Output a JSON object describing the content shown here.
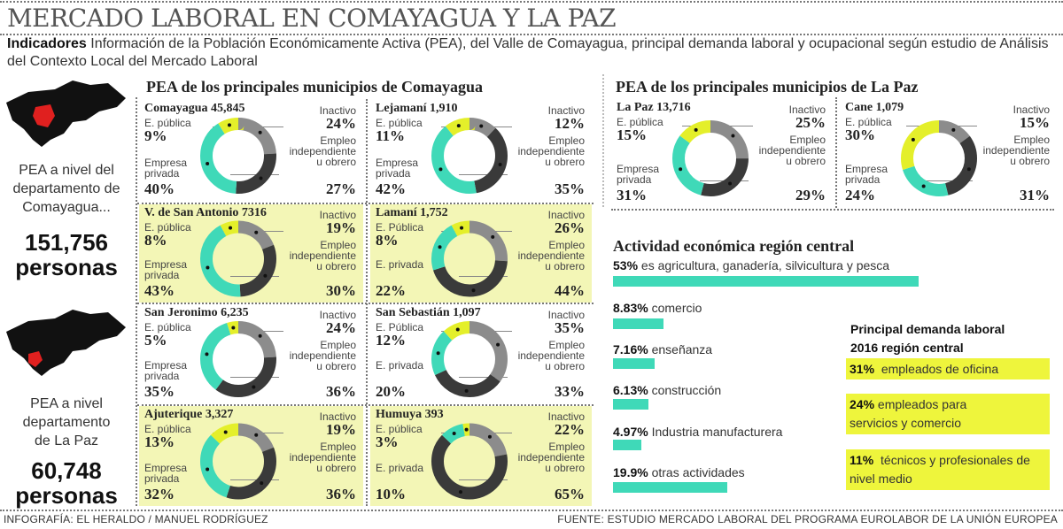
{
  "title": "MERCADO LABORAL EN COMAYAGUA Y LA PAZ",
  "intro": {
    "lead": "Indicadores",
    "text": "Información de la Población Económicamente Activa  (PEA),  del Valle de Comayagua, principal demanda laboral y ocupacional según estudio  de Análisis del Contexto Local del Mercado Laboral"
  },
  "left": {
    "comayagua_caption": "PEA a nivel del departamento de Comayagua...",
    "comayagua_total": "151,756",
    "comayagua_unit": "personas",
    "lapaz_caption": "PEA a nivel departamento de La Paz",
    "lapaz_total": "60,748",
    "lapaz_unit": "personas"
  },
  "colors": {
    "inactivo": "#8c8c8c",
    "empleo": "#3a3a3a",
    "privada": "#3fd9b8",
    "publica": "#e4ef2a",
    "highlight": "#f3f6b6"
  },
  "labels": {
    "inactivo": "Inactivo",
    "empleo": "Empleo independiente u obrero"
  },
  "chart_data": [
    {
      "type": "pie",
      "title": "PEA de los principales municipios de Comayagua",
      "segment_order": [
        "Inactivo",
        "Empleo independiente u obrero",
        "Empresa privada",
        "E. pública"
      ],
      "municipios": [
        {
          "name": "Comayagua 45,845",
          "publica_label": "E. pública",
          "privada_label": "Empresa privada",
          "values": [
            24,
            27,
            40,
            9
          ]
        },
        {
          "name": "Lejamaní 1,910",
          "publica_label": "E. pública",
          "privada_label": "Empresa privada",
          "values": [
            12,
            35,
            42,
            11
          ]
        },
        {
          "name": "V. de San Antonio 7316",
          "publica_label": "E. pública",
          "privada_label": "Empresa privada",
          "values": [
            19,
            30,
            43,
            8
          ],
          "highlight": true
        },
        {
          "name": "Lamaní 1,752",
          "publica_label": "E. Pública",
          "privada_label": "E. privada",
          "values": [
            26,
            44,
            22,
            8
          ],
          "highlight": true
        },
        {
          "name": "San Jeronimo 6,235",
          "publica_label": "E. pública",
          "privada_label": "Empresa privada",
          "values": [
            24,
            36,
            35,
            5
          ]
        },
        {
          "name": "San Sebastián 1,097",
          "publica_label": "E. Pública",
          "privada_label": "E. privada",
          "values": [
            35,
            33,
            20,
            12
          ]
        },
        {
          "name": "Ajuterique 3,327",
          "publica_label": "E. pública",
          "privada_label": "Empresa privada",
          "values": [
            19,
            36,
            32,
            13
          ],
          "highlight": true
        },
        {
          "name": "Humuya 393",
          "publica_label": "E. pública",
          "privada_label": "E. privada",
          "values": [
            22,
            65,
            10,
            3
          ],
          "highlight": true
        }
      ]
    },
    {
      "type": "pie",
      "title": "PEA de los principales municipios de La Paz",
      "segment_order": [
        "Inactivo",
        "Empleo independiente u obrero",
        "Empresa privada",
        "E. pública"
      ],
      "municipios": [
        {
          "name": "La Paz 13,716",
          "publica_label": "E. pública",
          "privada_label": "Empresa privada",
          "values": [
            25,
            29,
            31,
            15
          ]
        },
        {
          "name": "Cane 1,079",
          "publica_label": "E. pública",
          "privada_label": "Empresa privada",
          "values": [
            15,
            31,
            24,
            30
          ]
        }
      ]
    },
    {
      "type": "bar",
      "title": "Actividad económica  región central",
      "categories": [
        "es agricultura, ganadería, silvicultura  y pesca",
        "comercio",
        "enseñanza",
        "construcción",
        "Industria manufacturera",
        "otras actividades"
      ],
      "values": [
        53,
        8.83,
        7.16,
        6.13,
        4.97,
        19.9
      ],
      "value_labels": [
        "53%",
        "8.83%",
        "7.16%",
        "6.13%",
        "4.97%",
        "19.9%"
      ]
    }
  ],
  "demanda": {
    "title_line1": "Principal demanda laboral",
    "title_line2": "2016  región central",
    "items": [
      {
        "pct": "31%",
        "text": "empleados de oficina"
      },
      {
        "pct": "24%",
        "text": "empleados para servicios  y comercio"
      },
      {
        "pct": "11%",
        "text": "técnicos y profesionales de nivel medio"
      }
    ]
  },
  "footer": {
    "credit": "INFOGRAFÍA: EL HERALDO / MANUEL RODRÍGUEZ",
    "source": "FUENTE: ESTUDIO MERCADO LABORAL  DEL PROGRAMA EUROLABOR DE LA UNIÓN EUROPEA"
  }
}
